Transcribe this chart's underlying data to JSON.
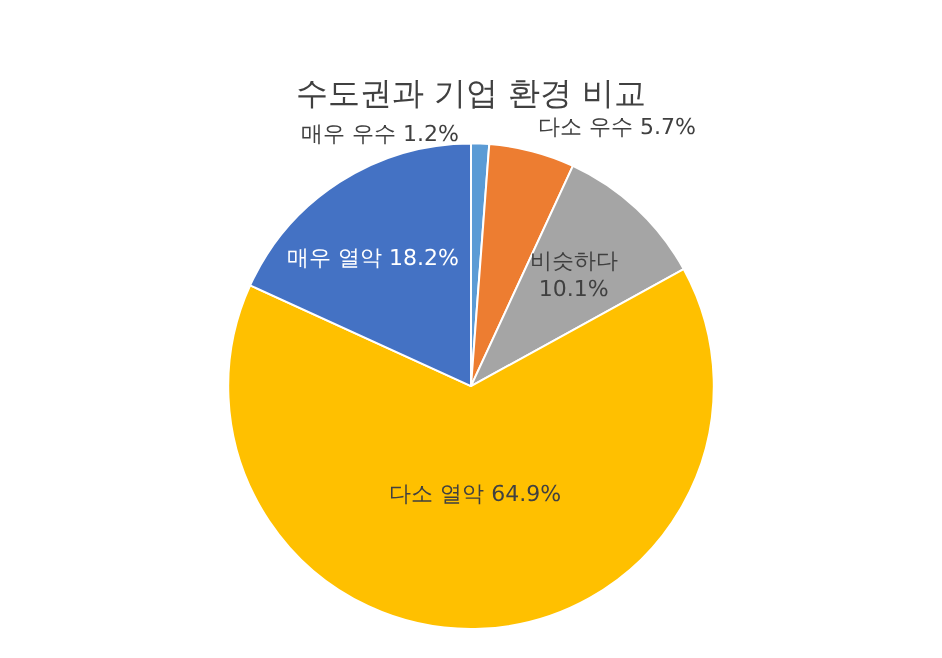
{
  "chart_data": {
    "type": "pie",
    "title": "수도권과 기업 환경 비교",
    "categories": [
      "매우 우수",
      "다소 우수",
      "비슷하다",
      "다소 열악",
      "매우 열악"
    ],
    "values": [
      1.2,
      5.7,
      10.1,
      64.9,
      18.2
    ],
    "value_labels": [
      "1.2%",
      "5.7%",
      "10.1%",
      "64.9%",
      "18.2%"
    ],
    "colors": [
      "#5b9bd5",
      "#ed7d31",
      "#a5a5a5",
      "#ffc000",
      "#4472c4"
    ],
    "legend": false
  }
}
